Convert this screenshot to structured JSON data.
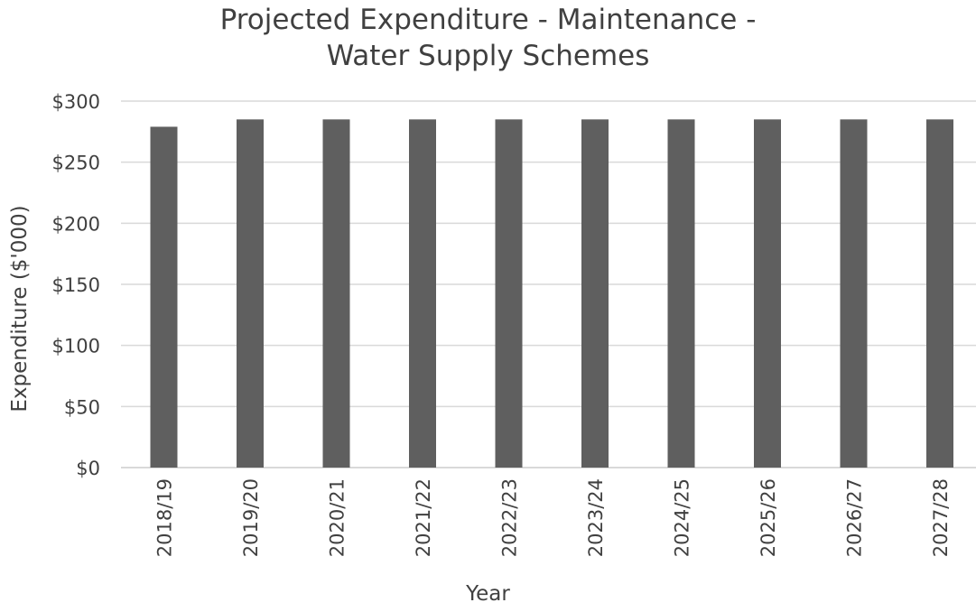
{
  "chart_data": {
    "type": "bar",
    "title_lines": [
      "Projected Expenditure - Maintenance -",
      "Water Supply Schemes"
    ],
    "xlabel": "Year",
    "ylabel": "Expenditure ($'000)",
    "categories": [
      "2018/19",
      "2019/20",
      "2020/21",
      "2021/22",
      "2022/23",
      "2023/24",
      "2024/25",
      "2025/26",
      "2026/27",
      "2027/28"
    ],
    "values": [
      279,
      285,
      285,
      285,
      285,
      285,
      285,
      285,
      285,
      285
    ],
    "ylim": [
      0,
      300
    ],
    "yticks": [
      0,
      50,
      100,
      150,
      200,
      250,
      300
    ],
    "ytick_labels": [
      "$0",
      "$50",
      "$100",
      "$150",
      "$200",
      "$250",
      "$300"
    ],
    "grid": true,
    "bar_color": "#5f5f5f",
    "grid_color": "#d9d9d9"
  }
}
